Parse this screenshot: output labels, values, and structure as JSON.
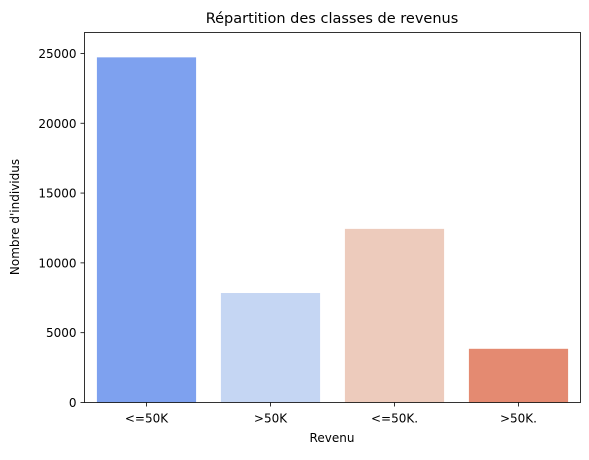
{
  "chart_data": {
    "type": "bar",
    "title": "Répartition des classes de revenus",
    "xlabel": "Revenu",
    "ylabel": "Nombre d'individus",
    "categories": [
      "<=50K",
      ">50K",
      "<=50K.",
      ">50K."
    ],
    "values": [
      24720,
      7841,
      12435,
      3846
    ],
    "colors": [
      "#7ea1ef",
      "#c5d6f3",
      "#edcbbc",
      "#e48a71"
    ],
    "ylim": [
      0,
      26500
    ],
    "yticks": [
      0,
      5000,
      10000,
      15000,
      20000,
      25000
    ],
    "grid": false,
    "legend": "none"
  }
}
